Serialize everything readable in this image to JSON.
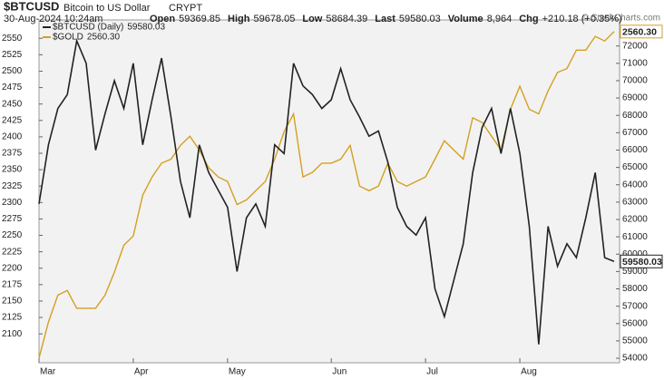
{
  "chart_data": {
    "type": "line",
    "symbol": "$BTCUSD",
    "name": "Bitcoin to US Dollar",
    "exchange": "CRYPT",
    "date": "30-Aug-2024 10:24am",
    "quote": [
      {
        "label": "Open",
        "value": "59369.85"
      },
      {
        "label": "High",
        "value": "59678.05"
      },
      {
        "label": "Low",
        "value": "58684.39"
      },
      {
        "label": "Last",
        "value": "59580.03"
      },
      {
        "label": "Volume",
        "value": "8,964"
      },
      {
        "label": "Chg",
        "value": "+210.18 (+0.35%)"
      }
    ],
    "credit": "© StockCharts.com",
    "categories": [
      "Mar",
      null,
      null,
      null,
      null,
      null,
      null,
      null,
      null,
      null,
      "Apr",
      null,
      null,
      null,
      null,
      null,
      null,
      null,
      null,
      null,
      "May",
      null,
      null,
      null,
      null,
      null,
      null,
      null,
      null,
      null,
      null,
      "Jun",
      null,
      null,
      null,
      null,
      null,
      null,
      null,
      null,
      null,
      "Jul",
      null,
      null,
      null,
      null,
      null,
      null,
      null,
      null,
      null,
      "Aug",
      null,
      null,
      null,
      null,
      null,
      null,
      null,
      null,
      null,
      null
    ],
    "ylim": [
      2056,
      2578
    ],
    "yticks": [
      2100,
      2125,
      2150,
      2175,
      2200,
      2225,
      2250,
      2275,
      2300,
      2325,
      2350,
      2375,
      2400,
      2425,
      2450,
      2475,
      2500,
      2525,
      2550
    ],
    "y2lim": [
      53740,
      73500
    ],
    "y2ticks": [
      54000,
      55000,
      56000,
      57000,
      58000,
      59000,
      60000,
      61000,
      62000,
      63000,
      64000,
      65000,
      66000,
      67000,
      68000,
      69000,
      70000,
      71000,
      72000
    ],
    "grid": false,
    "series": [
      {
        "name": "$BTCUSD (Daily)",
        "color": "#222222",
        "axis": "y2",
        "last_value_label": "59580.03",
        "values": [
          62900,
          66300,
          68400,
          69200,
          72300,
          71000,
          66000,
          68100,
          70000,
          68400,
          71000,
          66300,
          68900,
          71300,
          67900,
          64200,
          62100,
          66300,
          64700,
          63700,
          62700,
          59000,
          62100,
          62900,
          61600,
          66300,
          65800,
          71000,
          69700,
          69200,
          68400,
          68900,
          70700,
          68900,
          67900,
          66800,
          67100,
          65300,
          62700,
          61600,
          61100,
          62100,
          58000,
          56400,
          58500,
          60600,
          64700,
          67300,
          68400,
          65800,
          68400,
          65800,
          61600,
          54800,
          61600,
          59300,
          60600,
          59800,
          62100,
          64700,
          59800,
          59580.03
        ]
      },
      {
        "name": "$GOLD",
        "color": "#d4a020",
        "axis": "y",
        "last_value_label": "2560.30",
        "values": [
          2063,
          2118,
          2159,
          2166,
          2139,
          2139,
          2139,
          2159,
          2194,
          2235,
          2249,
          2311,
          2339,
          2360,
          2366,
          2387,
          2401,
          2380,
          2353,
          2339,
          2332,
          2297,
          2304,
          2318,
          2332,
          2366,
          2408,
          2435,
          2339,
          2346,
          2360,
          2360,
          2366,
          2387,
          2325,
          2318,
          2325,
          2360,
          2332,
          2325,
          2332,
          2339,
          2366,
          2394,
          2380,
          2366,
          2429,
          2422,
          2401,
          2380,
          2442,
          2477,
          2442,
          2435,
          2470,
          2498,
          2504,
          2532,
          2532,
          2553,
          2546,
          2560.3
        ]
      }
    ]
  }
}
